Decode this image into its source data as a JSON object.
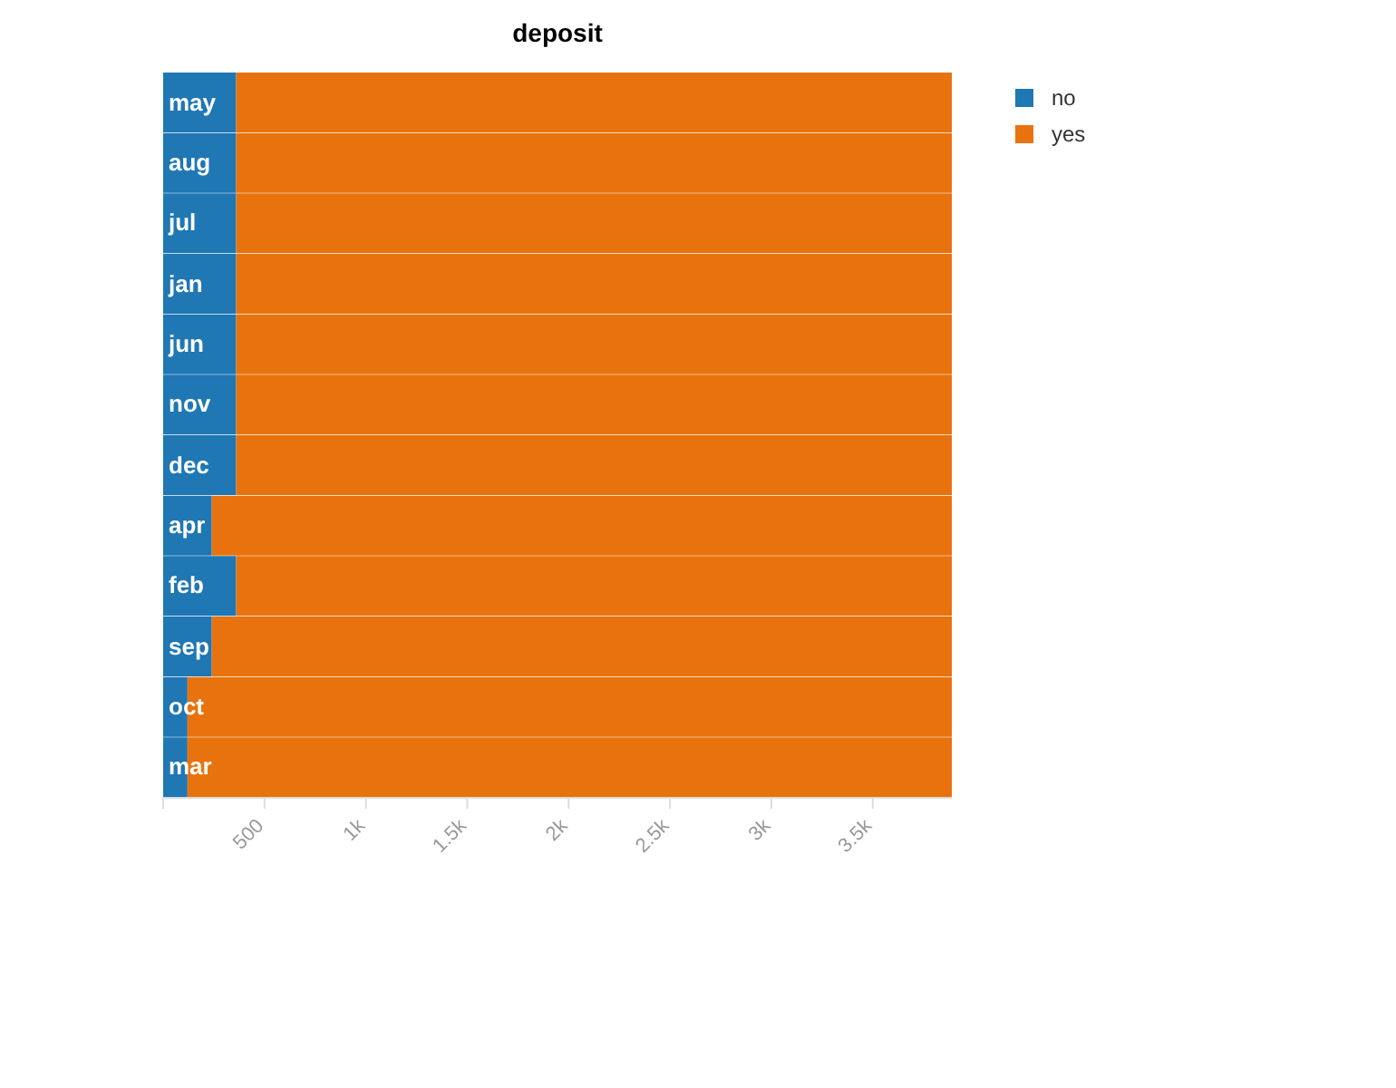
{
  "chart_data": {
    "type": "bar",
    "title": "deposit",
    "orientation": "horizontal",
    "stacked": true,
    "categories": [
      "may",
      "aug",
      "jul",
      "jan",
      "jun",
      "nov",
      "dec",
      "apr",
      "feb",
      "sep",
      "oct",
      "mar"
    ],
    "series": [
      {
        "name": "no",
        "color": "#1f77b4",
        "values": [
          360,
          360,
          360,
          360,
          360,
          360,
          360,
          240,
          360,
          240,
          120,
          120
        ]
      },
      {
        "name": "yes",
        "color": "#e8730e",
        "values": [
          3530,
          3530,
          3530,
          3530,
          3530,
          3530,
          3530,
          3650,
          3530,
          3650,
          3770,
          3770
        ]
      }
    ],
    "xlim": [
      0,
      3890
    ],
    "xticks": [
      {
        "value": 0,
        "label": null
      },
      500,
      {
        "value": 1000,
        "label": "1k"
      },
      {
        "value": 1500,
        "label": "1.5k"
      },
      {
        "value": 2000,
        "label": "2k"
      },
      {
        "value": 2500,
        "label": "2.5k"
      },
      {
        "value": 3000,
        "label": "3k"
      },
      {
        "value": 3500,
        "label": "3.5k"
      }
    ],
    "grid": false,
    "legend": "top right"
  }
}
